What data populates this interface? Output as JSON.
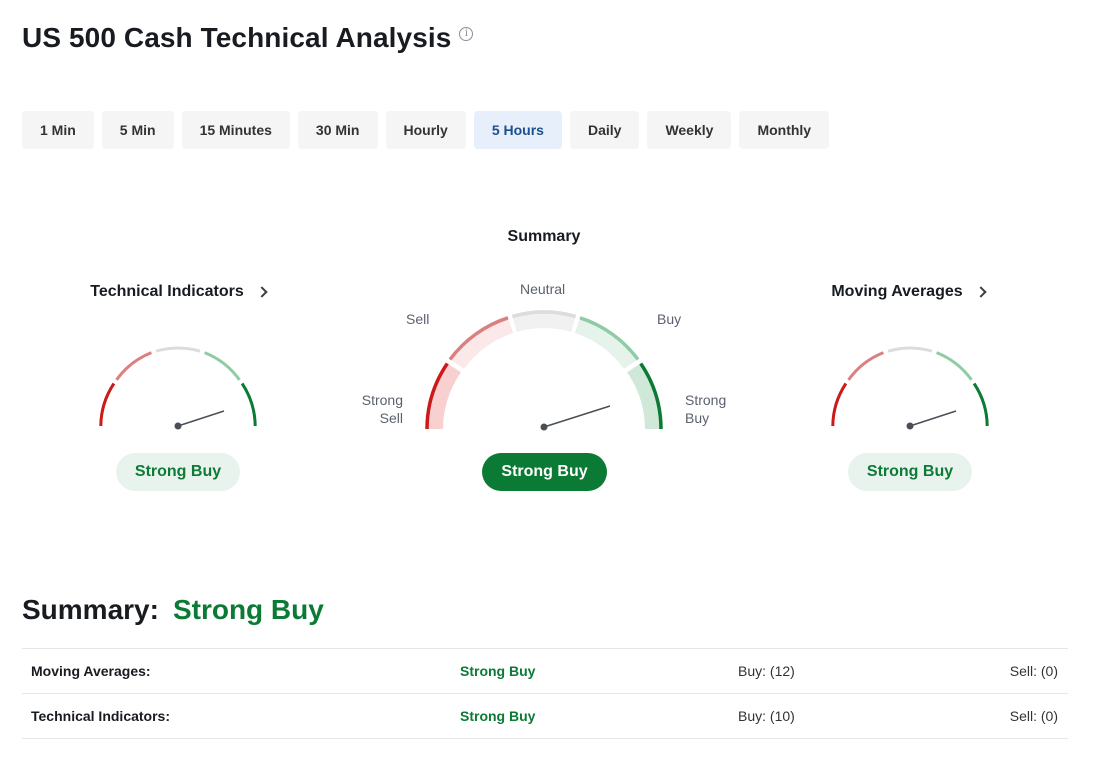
{
  "header": {
    "title": "US 500 Cash Technical Analysis",
    "info_icon": "info-icon"
  },
  "tabs": [
    {
      "label": "1 Min",
      "active": false
    },
    {
      "label": "5 Min",
      "active": false
    },
    {
      "label": "15 Minutes",
      "active": false
    },
    {
      "label": "30 Min",
      "active": false
    },
    {
      "label": "Hourly",
      "active": false
    },
    {
      "label": "5 Hours",
      "active": true
    },
    {
      "label": "Daily",
      "active": false
    },
    {
      "label": "Weekly",
      "active": false
    },
    {
      "label": "Monthly",
      "active": false
    }
  ],
  "summary_gauge": {
    "title": "Summary",
    "labels": {
      "strong_sell": "Strong\nSell",
      "sell": "Sell",
      "neutral": "Neutral",
      "buy": "Buy",
      "strong_buy": "Strong\nBuy"
    },
    "result": "Strong Buy"
  },
  "technical_indicators": {
    "title": "Technical Indicators",
    "result": "Strong Buy"
  },
  "moving_averages": {
    "title": "Moving Averages",
    "result": "Strong Buy"
  },
  "summary": {
    "label": "Summary:",
    "value": "Strong Buy",
    "rows": [
      {
        "name": "Moving Averages:",
        "signal": "Strong Buy",
        "buy": "Buy: (12)",
        "sell": "Sell: (0)"
      },
      {
        "name": "Technical Indicators:",
        "signal": "Strong Buy",
        "buy": "Buy: (10)",
        "sell": "Sell: (0)"
      }
    ]
  },
  "colors": {
    "strong_sell": "#cc1a1a",
    "sell": "#db8080",
    "neutral": "#dcdcdc",
    "buy": "#8fcca5",
    "strong_buy": "#0b7a34",
    "accent_green": "#0b7a34",
    "tab_active_bg": "#e6effa",
    "tab_active_text": "#1c4f91"
  }
}
